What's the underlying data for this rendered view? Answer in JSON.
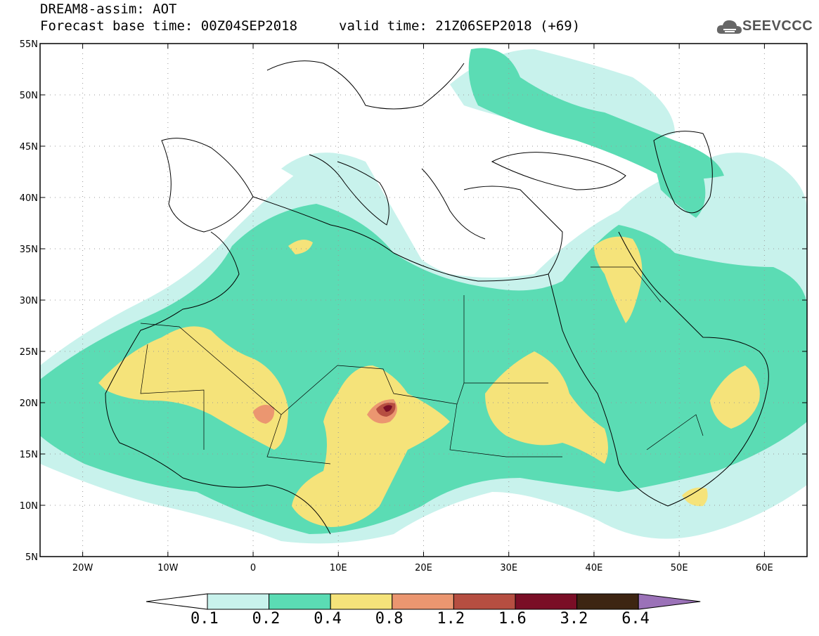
{
  "header": {
    "title": "DREAM8-assim: AOT",
    "base_time": "Forecast base time: 00Z04SEP2018",
    "valid_time": "valid time: 21Z06SEP2018 (+69)"
  },
  "logo": {
    "text": "SEEVCCC",
    "icon": "cloud-icon"
  },
  "map": {
    "lat_ticks": [
      "55N",
      "50N",
      "45N",
      "40N",
      "35N",
      "30N",
      "25N",
      "20N",
      "15N",
      "10N",
      "5N"
    ],
    "lon_ticks": [
      "20W",
      "10W",
      "0",
      "10E",
      "20E",
      "30E",
      "40E",
      "50E",
      "60E"
    ],
    "lat_range": [
      5,
      55
    ],
    "lon_range": [
      -25,
      65
    ],
    "grid": true
  },
  "colorbar": {
    "levels": [
      "0.1",
      "0.2",
      "0.4",
      "0.8",
      "1.2",
      "1.6",
      "3.2",
      "6.4"
    ],
    "colors": [
      "#ffffff",
      "#c8f2ec",
      "#5bdcb4",
      "#f5e37a",
      "#eb9670",
      "#b64e41",
      "#7a0e26",
      "#3d2512",
      "#9b72b8"
    ]
  }
}
